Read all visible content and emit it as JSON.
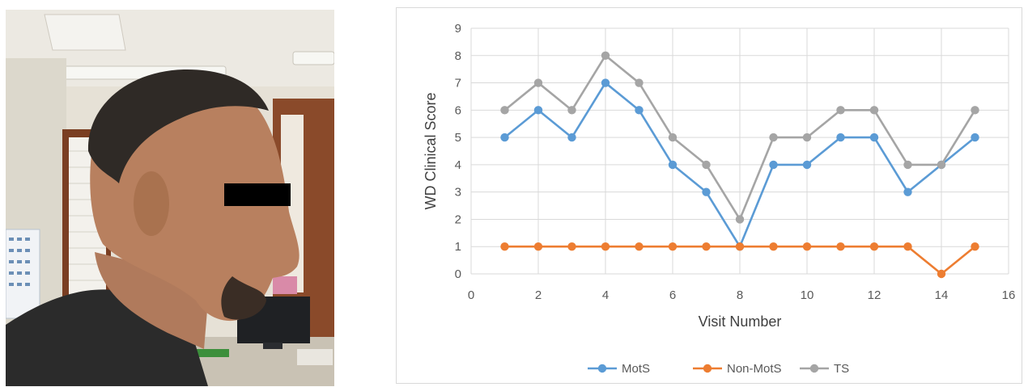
{
  "photo": {
    "subject": "profile-photo-of-man",
    "redaction": "eye-censor-bar"
  },
  "chart_data": {
    "type": "line",
    "title": "",
    "xlabel": "Visit Number",
    "ylabel": "WD Clinical Score",
    "xlim": [
      0,
      16
    ],
    "ylim": [
      0,
      9
    ],
    "xticks": [
      0,
      2,
      4,
      6,
      8,
      10,
      12,
      14,
      16
    ],
    "yticks": [
      0,
      1,
      2,
      3,
      4,
      5,
      6,
      7,
      8,
      9
    ],
    "grid": true,
    "legend_position": "bottom",
    "x": [
      1,
      2,
      3,
      4,
      5,
      6,
      7,
      8,
      9,
      10,
      11,
      12,
      13,
      14,
      15
    ],
    "series": [
      {
        "name": "MotS",
        "color": "#5b9bd5",
        "values": [
          5,
          6,
          5,
          7,
          6,
          4,
          3,
          1,
          4,
          4,
          5,
          5,
          3,
          4,
          5
        ]
      },
      {
        "name": "Non-MotS",
        "color": "#ed7d31",
        "values": [
          1,
          1,
          1,
          1,
          1,
          1,
          1,
          1,
          1,
          1,
          1,
          1,
          1,
          0,
          1
        ]
      },
      {
        "name": "TS",
        "color": "#a5a5a5",
        "values": [
          6,
          7,
          6,
          8,
          7,
          5,
          4,
          2,
          5,
          5,
          6,
          6,
          4,
          4,
          6
        ]
      }
    ]
  }
}
